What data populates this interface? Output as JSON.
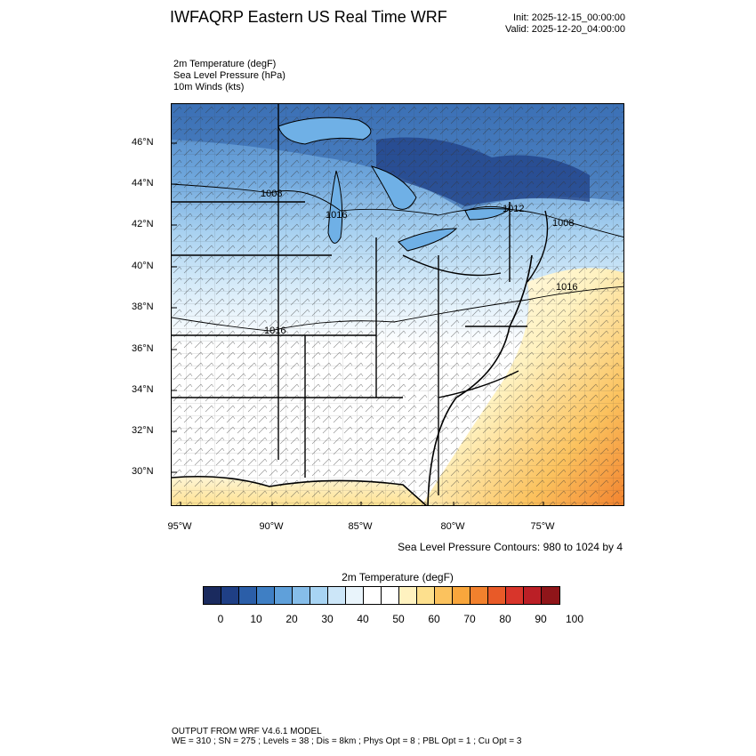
{
  "header": {
    "title": "IWFAQRP Eastern US Real Time WRF",
    "init": "Init: 2025-12-15_00:00:00",
    "valid": "Valid: 2025-12-20_04:00:00"
  },
  "fields": [
    "2m Temperature   (degF)",
    "Sea Level Pressure   (hPa)",
    "10m Winds   (kts)"
  ],
  "map": {
    "lat_labels": [
      "46°N",
      "44°N",
      "42°N",
      "40°N",
      "38°N",
      "36°N",
      "34°N",
      "32°N",
      "30°N"
    ],
    "lon_labels": [
      "95°W",
      "90°W",
      "85°W",
      "80°W",
      "75°W"
    ],
    "pressure_labels": [
      "1008",
      "1016",
      "1016",
      "1016",
      "1012",
      "1008"
    ]
  },
  "slp_note": "Sea Level Pressure Contours: 980 to 1024 by 4",
  "colorbar": {
    "title": "2m Temperature  (degF)",
    "colors": [
      "#1a2a5e",
      "#1f3f85",
      "#2b5ea8",
      "#3f7fc4",
      "#5fa0da",
      "#86bde9",
      "#a8d4f3",
      "#cce6f8",
      "#e9f4fb",
      "#ffffff",
      "#ffffff",
      "#fff2c0",
      "#fde08e",
      "#fbc25e",
      "#f9a63c",
      "#f2812d",
      "#e85a28",
      "#d8352b",
      "#bb1f26",
      "#8f1519"
    ],
    "tick_labels": [
      "0",
      "10",
      "20",
      "30",
      "40",
      "50",
      "60",
      "70",
      "80",
      "90",
      "100"
    ]
  },
  "footer": {
    "line1": "OUTPUT FROM WRF V4.6.1 MODEL",
    "line2": "WE = 310 ; SN = 275 ; Levels = 38 ; Dis = 8km ; Phys Opt = 8 ; PBL Opt = 1 ; Cu Opt = 3"
  }
}
